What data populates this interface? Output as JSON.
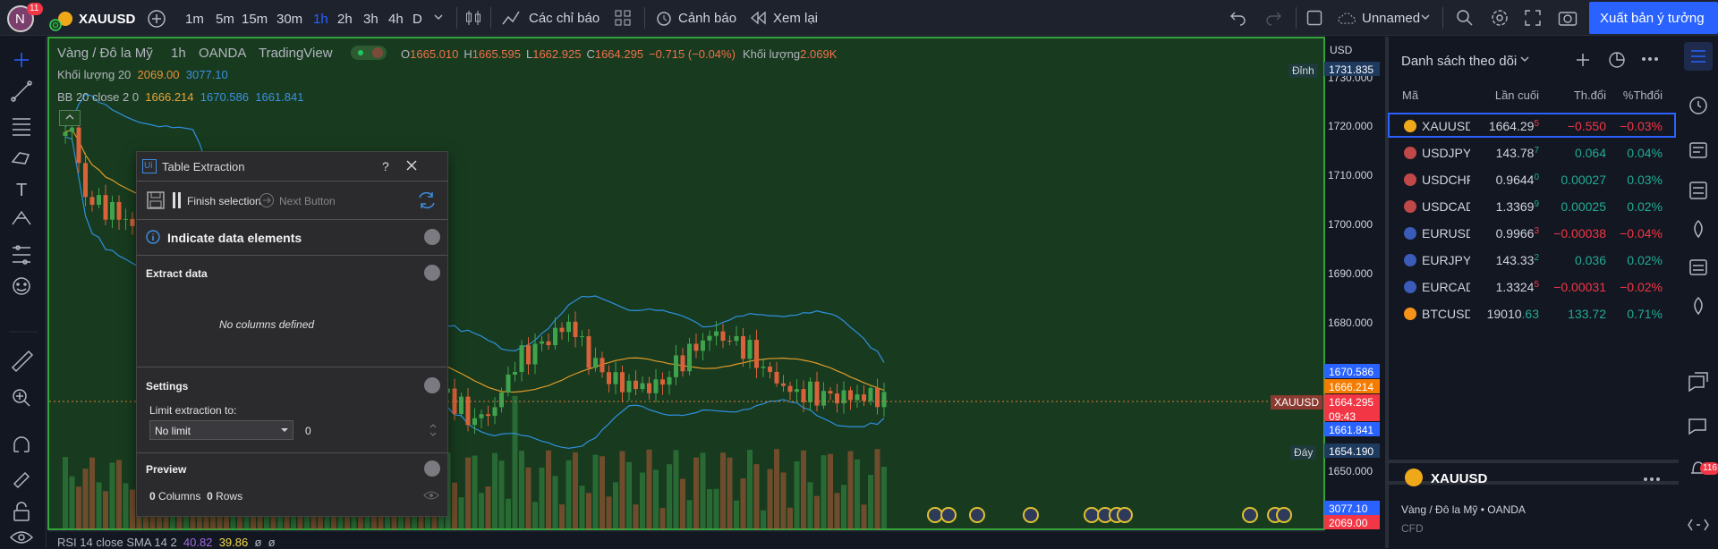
{
  "topbar": {
    "avatar": "N",
    "avatar_badge": "11",
    "symbol": "XAUUSD",
    "timeframes": [
      "1m",
      "5m",
      "15m",
      "30m",
      "1h",
      "2h",
      "3h",
      "4h",
      "D"
    ],
    "indicators": "Các chỉ báo",
    "alerts": "Cảnh báo",
    "replay": "Xem lại",
    "layout_name": "Unnamed",
    "publish": "Xuất bản ý tưởng"
  },
  "legend": {
    "name": "Vàng / Đô la Mỹ",
    "interval": "1h",
    "exchange": "OANDA",
    "source": "TradingView",
    "ohlc": [
      {
        "label": "O",
        "value": "1665.010"
      },
      {
        "label": "H",
        "value": "1665.595"
      },
      {
        "label": "L",
        "value": "1662.925"
      },
      {
        "label": "C",
        "value": "1664.295"
      }
    ],
    "change": "−0.715 (−0.04%)",
    "volume_label": "Khối lượng",
    "volume": "2.069K",
    "volume_study": {
      "name": "Khối lượng 20",
      "values": [
        "2069.00",
        "3077.10"
      ]
    },
    "bb_study": {
      "name": "BB 20 close 2 0",
      "values": [
        "1666.214",
        "1670.586",
        "1661.841"
      ]
    }
  },
  "price_axis": {
    "currency": "USD",
    "ticks": [
      "1730.000",
      "1720.000",
      "1710.000",
      "1700.000",
      "1690.000",
      "1680.000",
      "1650.000"
    ],
    "labels": {
      "high": "1731.835",
      "bb_upper": "1670.586",
      "bb_basis": "1666.214",
      "last": "1664.295",
      "countdown": "09:43",
      "bb_lower": "1661.841",
      "low": "1654.190",
      "volume_ma": "3077.10",
      "volume": "2069.00"
    },
    "high_tag": "Đỉnh",
    "low_tag": "Đáy",
    "symbol_tag": "XAUUSD"
  },
  "rsi": {
    "name": "RSI 14 close SMA 14 2",
    "values": [
      "40.82",
      "39.86"
    ],
    "extra": [
      "ø",
      "ø"
    ]
  },
  "dialog": {
    "title": "Table Extraction",
    "help": "?",
    "finish": "Finish selection",
    "next": "Next Button",
    "indicate": "Indicate data elements",
    "extract": "Extract data",
    "empty": "No columns defined",
    "settings": "Settings",
    "limit_label": "Limit extraction to:",
    "limit_value": "No limit",
    "limit_count": "0",
    "preview": "Preview",
    "columns_count": "0",
    "columns_label": "Columns",
    "rows_count": "0",
    "rows_label": "Rows"
  },
  "watchlist": {
    "title": "Danh sách theo dõi",
    "columns": [
      "Mã",
      "Lần cuối",
      "Th.đổi",
      "%Thđổi"
    ],
    "rows": [
      {
        "symbol": "XAUUSD",
        "last": "1664.29",
        "last_tail": "5",
        "change": "−0.550",
        "change_pct": "−0.03%"
      },
      {
        "symbol": "USDJPY",
        "last": "143.78",
        "last_tail": "7",
        "change": "0.064",
        "change_pct": "0.04%"
      },
      {
        "symbol": "USDCHF",
        "last": "0.9644",
        "last_tail": "0",
        "change": "0.00027",
        "change_pct": "0.03%"
      },
      {
        "symbol": "USDCAD",
        "last": "1.3369",
        "last_tail": "9",
        "change": "0.00025",
        "change_pct": "0.02%"
      },
      {
        "symbol": "EURUSD",
        "last": "0.9966",
        "last_tail": "3",
        "change": "−0.00038",
        "change_pct": "−0.04%"
      },
      {
        "symbol": "EURJPY",
        "last": "143.33",
        "last_tail": "2",
        "change": "0.036",
        "change_pct": "0.02%"
      },
      {
        "symbol": "EURCAD",
        "last": "1.3324",
        "last_tail": "5",
        "change": "−0.00031",
        "change_pct": "−0.02%"
      },
      {
        "symbol": "BTCUSD",
        "last": "19010",
        "last_tail": ".63",
        "change": "133.72",
        "change_pct": "0.71%"
      }
    ]
  },
  "details": {
    "symbol": "XAUUSD",
    "name": "Vàng / Đô la Mỹ",
    "separator": "•",
    "exchange": "OANDA",
    "kind": "CFD"
  },
  "sidebar": {
    "badge": "116"
  }
}
